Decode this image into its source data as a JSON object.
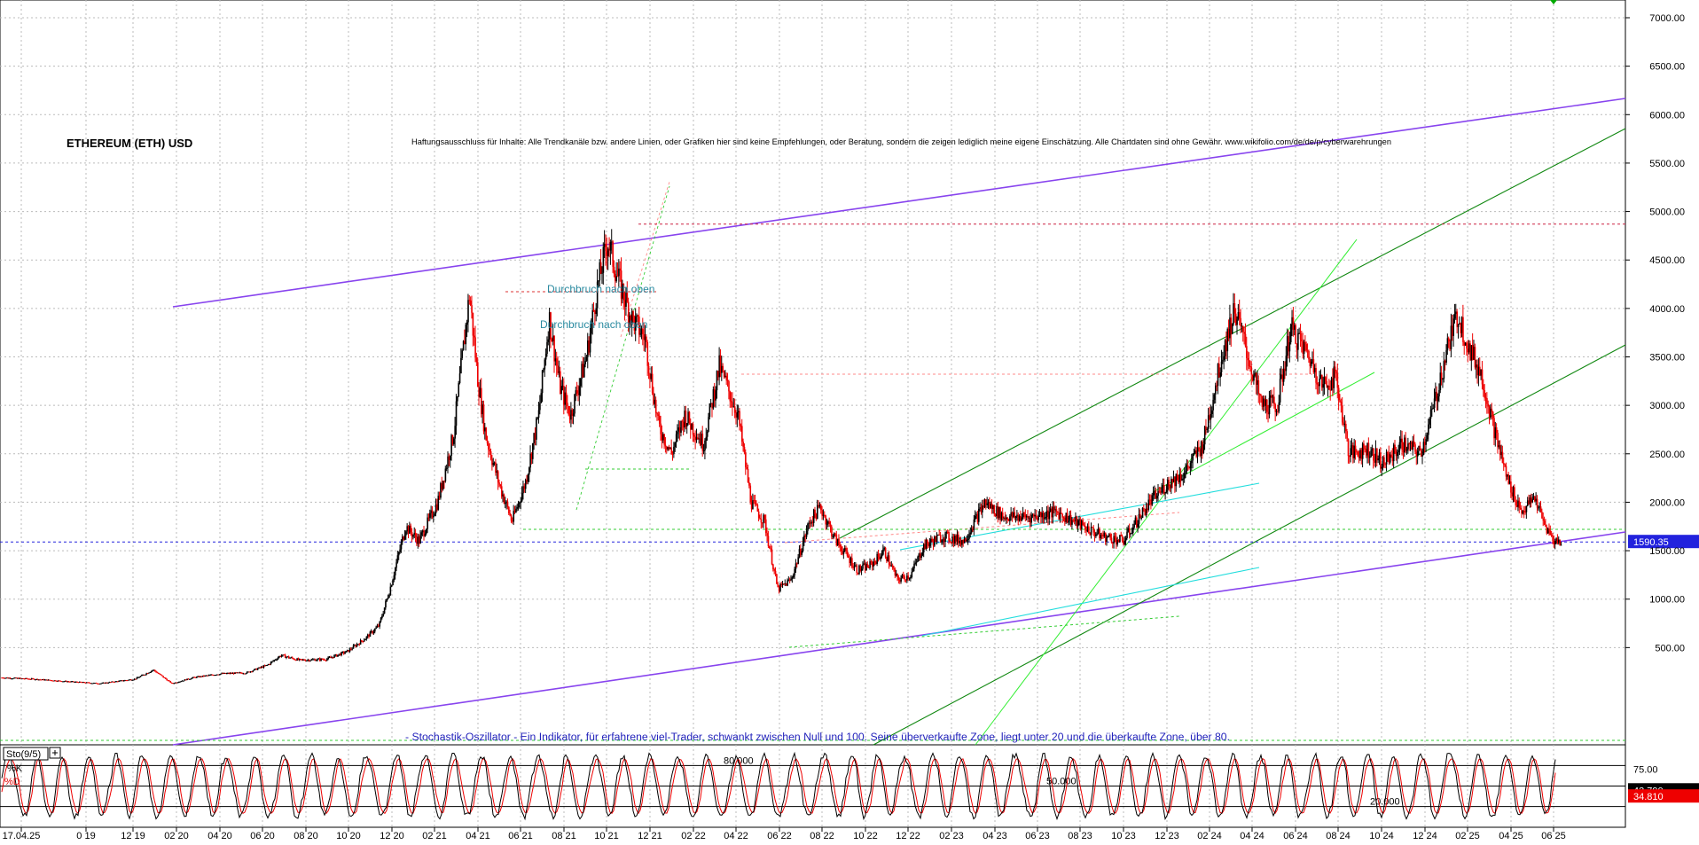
{
  "chart_data": {
    "type": "candlestick",
    "title": "ETHEREUM (ETH) USD",
    "disclaimer": "Haftungsausschluss für Inhalte: Alle Trendkanäle bzw. andere Linien, oder Grafiken hier sind keine Empfehlungen, oder Beratung, sondern die zeigen lediglich meine eigene Einschätzung. Alle Chartdaten sind ohne Gewähr. www.wikifolio.com/de/de/p/cyberwarehrungen",
    "ylim": [
      0,
      7200
    ],
    "y_ticks": [
      {
        "value": 500,
        "label": "500.00"
      },
      {
        "value": 1000,
        "label": "1000.00"
      },
      {
        "value": 1500,
        "label": "1500.00"
      },
      {
        "value": 2000,
        "label": "2000.00"
      },
      {
        "value": 2500,
        "label": "2500.00"
      },
      {
        "value": 3000,
        "label": "3000.00"
      },
      {
        "value": 3500,
        "label": "3500.00"
      },
      {
        "value": 4000,
        "label": "4000.00"
      },
      {
        "value": 4500,
        "label": "4500.00"
      },
      {
        "value": 5000,
        "label": "5000.00"
      },
      {
        "value": 5500,
        "label": "5500.00"
      },
      {
        "value": 6000,
        "label": "6000.00"
      },
      {
        "value": 6500,
        "label": "6500.00"
      },
      {
        "value": 7000,
        "label": "7000.00"
      }
    ],
    "x_ticks": [
      "17.04.25",
      "0 19",
      "12 19",
      "02 20",
      "04 20",
      "06 20",
      "08 20",
      "10 20",
      "12 20",
      "02 21",
      "04 21",
      "06 21",
      "08 21",
      "10 21",
      "12 21",
      "02 22",
      "04 22",
      "06 22",
      "08 22",
      "10 22",
      "12 22",
      "02 23",
      "04 23",
      "06 23",
      "08 23",
      "10 23",
      "12 23",
      "02 24",
      "04 24",
      "06 24",
      "08 24",
      "10 24",
      "12 24",
      "02 25",
      "04 25",
      "06 25"
    ],
    "x_range": [
      2019.58,
      2025.58
    ],
    "series": [
      {
        "t": 2019.58,
        "v": 190
      },
      {
        "t": 2019.7,
        "v": 175
      },
      {
        "t": 2019.83,
        "v": 150
      },
      {
        "t": 2019.95,
        "v": 130
      },
      {
        "t": 2020.08,
        "v": 175
      },
      {
        "t": 2020.15,
        "v": 270
      },
      {
        "t": 2020.22,
        "v": 130
      },
      {
        "t": 2020.3,
        "v": 190
      },
      {
        "t": 2020.4,
        "v": 230
      },
      {
        "t": 2020.5,
        "v": 240
      },
      {
        "t": 2020.58,
        "v": 320
      },
      {
        "t": 2020.63,
        "v": 420
      },
      {
        "t": 2020.7,
        "v": 370
      },
      {
        "t": 2020.8,
        "v": 380
      },
      {
        "t": 2020.88,
        "v": 460
      },
      {
        "t": 2020.95,
        "v": 600
      },
      {
        "t": 2021.0,
        "v": 730
      },
      {
        "t": 2021.04,
        "v": 1100
      },
      {
        "t": 2021.1,
        "v": 1750
      },
      {
        "t": 2021.15,
        "v": 1600
      },
      {
        "t": 2021.22,
        "v": 2000
      },
      {
        "t": 2021.28,
        "v": 2700
      },
      {
        "t": 2021.34,
        "v": 4150
      },
      {
        "t": 2021.37,
        "v": 3300
      },
      {
        "t": 2021.4,
        "v": 2700
      },
      {
        "t": 2021.45,
        "v": 2200
      },
      {
        "t": 2021.5,
        "v": 1800
      },
      {
        "t": 2021.55,
        "v": 2200
      },
      {
        "t": 2021.6,
        "v": 2900
      },
      {
        "t": 2021.64,
        "v": 3900
      },
      {
        "t": 2021.68,
        "v": 3200
      },
      {
        "t": 2021.72,
        "v": 2900
      },
      {
        "t": 2021.78,
        "v": 3500
      },
      {
        "t": 2021.82,
        "v": 4200
      },
      {
        "t": 2021.86,
        "v": 4700
      },
      {
        "t": 2021.9,
        "v": 4300
      },
      {
        "t": 2021.95,
        "v": 3900
      },
      {
        "t": 2022.0,
        "v": 3700
      },
      {
        "t": 2022.05,
        "v": 2800
      },
      {
        "t": 2022.1,
        "v": 2500
      },
      {
        "t": 2022.15,
        "v": 2900
      },
      {
        "t": 2022.22,
        "v": 2600
      },
      {
        "t": 2022.28,
        "v": 3400
      },
      {
        "t": 2022.35,
        "v": 2900
      },
      {
        "t": 2022.4,
        "v": 2000
      },
      {
        "t": 2022.45,
        "v": 1800
      },
      {
        "t": 2022.5,
        "v": 1100
      },
      {
        "t": 2022.55,
        "v": 1200
      },
      {
        "t": 2022.62,
        "v": 1800
      },
      {
        "t": 2022.66,
        "v": 1950
      },
      {
        "t": 2022.72,
        "v": 1600
      },
      {
        "t": 2022.8,
        "v": 1300
      },
      {
        "t": 2022.85,
        "v": 1350
      },
      {
        "t": 2022.9,
        "v": 1500
      },
      {
        "t": 2022.95,
        "v": 1200
      },
      {
        "t": 2023.0,
        "v": 1250
      },
      {
        "t": 2023.05,
        "v": 1550
      },
      {
        "t": 2023.12,
        "v": 1650
      },
      {
        "t": 2023.2,
        "v": 1600
      },
      {
        "t": 2023.28,
        "v": 2000
      },
      {
        "t": 2023.35,
        "v": 1850
      },
      {
        "t": 2023.45,
        "v": 1850
      },
      {
        "t": 2023.55,
        "v": 1900
      },
      {
        "t": 2023.65,
        "v": 1750
      },
      {
        "t": 2023.72,
        "v": 1650
      },
      {
        "t": 2023.8,
        "v": 1600
      },
      {
        "t": 2023.85,
        "v": 1800
      },
      {
        "t": 2023.9,
        "v": 2000
      },
      {
        "t": 2023.97,
        "v": 2200
      },
      {
        "t": 2024.03,
        "v": 2300
      },
      {
        "t": 2024.1,
        "v": 2600
      },
      {
        "t": 2024.17,
        "v": 3500
      },
      {
        "t": 2024.22,
        "v": 4000
      },
      {
        "t": 2024.27,
        "v": 3500
      },
      {
        "t": 2024.32,
        "v": 3000
      },
      {
        "t": 2024.38,
        "v": 3000
      },
      {
        "t": 2024.43,
        "v": 3800
      },
      {
        "t": 2024.5,
        "v": 3500
      },
      {
        "t": 2024.55,
        "v": 3200
      },
      {
        "t": 2024.6,
        "v": 3300
      },
      {
        "t": 2024.65,
        "v": 2500
      },
      {
        "t": 2024.72,
        "v": 2550
      },
      {
        "t": 2024.78,
        "v": 2400
      },
      {
        "t": 2024.85,
        "v": 2600
      },
      {
        "t": 2024.92,
        "v": 2500
      },
      {
        "t": 2024.97,
        "v": 3000
      },
      {
        "t": 2025.02,
        "v": 3600
      },
      {
        "t": 2025.06,
        "v": 3950
      },
      {
        "t": 2025.1,
        "v": 3600
      },
      {
        "t": 2025.15,
        "v": 3300
      },
      {
        "t": 2025.2,
        "v": 2700
      },
      {
        "t": 2025.25,
        "v": 2200
      },
      {
        "t": 2025.3,
        "v": 1900
      },
      {
        "t": 2025.35,
        "v": 2050
      },
      {
        "t": 2025.38,
        "v": 1800
      },
      {
        "t": 2025.42,
        "v": 1600
      },
      {
        "t": 2025.45,
        "v": 1590
      }
    ],
    "horizontal_levels": [
      {
        "value": 4870,
        "color": "#cc2244",
        "style": "dashed"
      },
      {
        "value": 1590.35,
        "color": "#2222dd",
        "style": "dashed",
        "label": "1590.35"
      },
      {
        "value": 1720,
        "color": "#33cc33",
        "style": "dashed"
      }
    ],
    "annotations": [
      {
        "text": "Durchbruch nach oben"
      },
      {
        "text": "Durchbruch nach oben"
      }
    ],
    "indicator": {
      "name": "Sto(9/5)",
      "description": "- Stochastik-Oszillator - Ein Indikator, für erfahrene viel-Trader, schwankt zwischen Null und 100. Seine überverkaufte Zone, liegt unter 20 und die überkaufte Zone, über 80.",
      "k_label": "%K",
      "d_label": "%D",
      "ylim": [
        0,
        100
      ],
      "levels": [
        {
          "value": 80,
          "label": "80.000"
        },
        {
          "value": 50,
          "label": "50.000"
        },
        {
          "value": 20,
          "label": "20.000"
        }
      ],
      "y_ticks": [
        {
          "value": 75,
          "label": "75.00"
        }
      ],
      "k_value": "43.790",
      "d_value": "34.810"
    }
  }
}
